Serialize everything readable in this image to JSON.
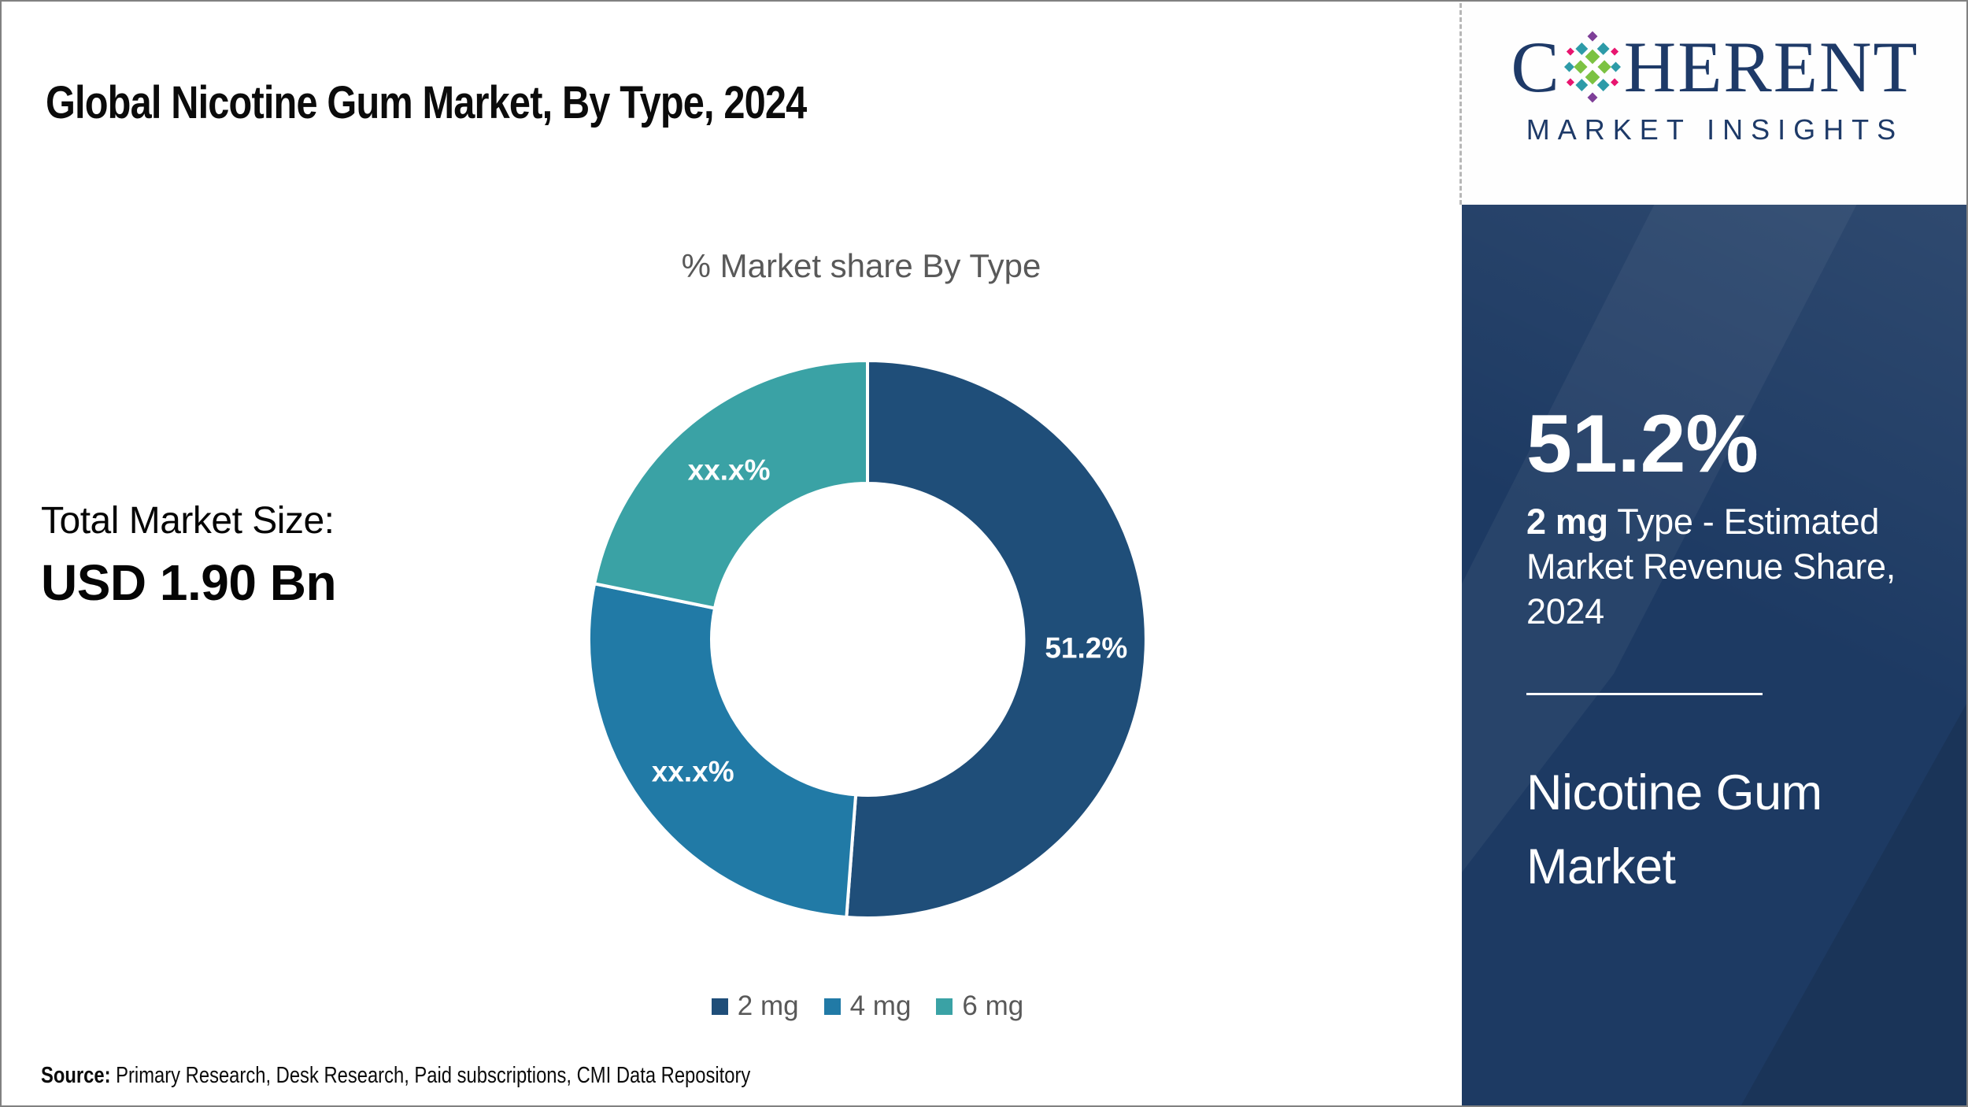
{
  "header": {
    "title": "Global Nicotine Gum Market, By Type, 2024"
  },
  "logo": {
    "name": "Coherent Market Insights logo",
    "first_letter": "C",
    "rest_letters": "HERENT",
    "subtitle": "MARKET INSIGHTS",
    "color": "#1E3A68"
  },
  "market_size": {
    "label": "Total Market Size:",
    "value": "USD 1.90 Bn"
  },
  "chart_data": {
    "type": "pie",
    "subtype": "donut",
    "title": "% Market share By Type",
    "donut_hole_ratio": 0.56,
    "legend_position": "bottom",
    "start_angle_deg": 0,
    "direction": "clockwise",
    "slices": [
      {
        "label": "2 mg",
        "value": 51.2,
        "display_value": "51.2%",
        "color": "#1F4E79"
      },
      {
        "label": "4 mg",
        "value": 27.0,
        "display_value": "xx.x%",
        "color": "#217AA6"
      },
      {
        "label": "6 mg",
        "value": 21.8,
        "display_value": "xx.x%",
        "color": "#3AA2A5"
      }
    ]
  },
  "source": {
    "label": "Source:",
    "text": " Primary Research, Desk Research, Paid subscriptions, CMI Data Repository"
  },
  "sidebar": {
    "stat_value": "51.2%",
    "stat_desc_bold": "2 mg",
    "stat_desc_rest": " Type - Estimated Market Revenue Share, 2024",
    "market_name": "Nicotine Gum Market",
    "panel_color": "#1D3A63"
  },
  "colors": {
    "slice_dark_blue": "#1F4E79",
    "slice_medium_blue": "#217AA6",
    "slice_teal": "#3AA2A5",
    "navy_panel": "#1D3A63",
    "logo_navy": "#1E3A68",
    "muted_text": "#595959",
    "page_border": "#818181"
  }
}
